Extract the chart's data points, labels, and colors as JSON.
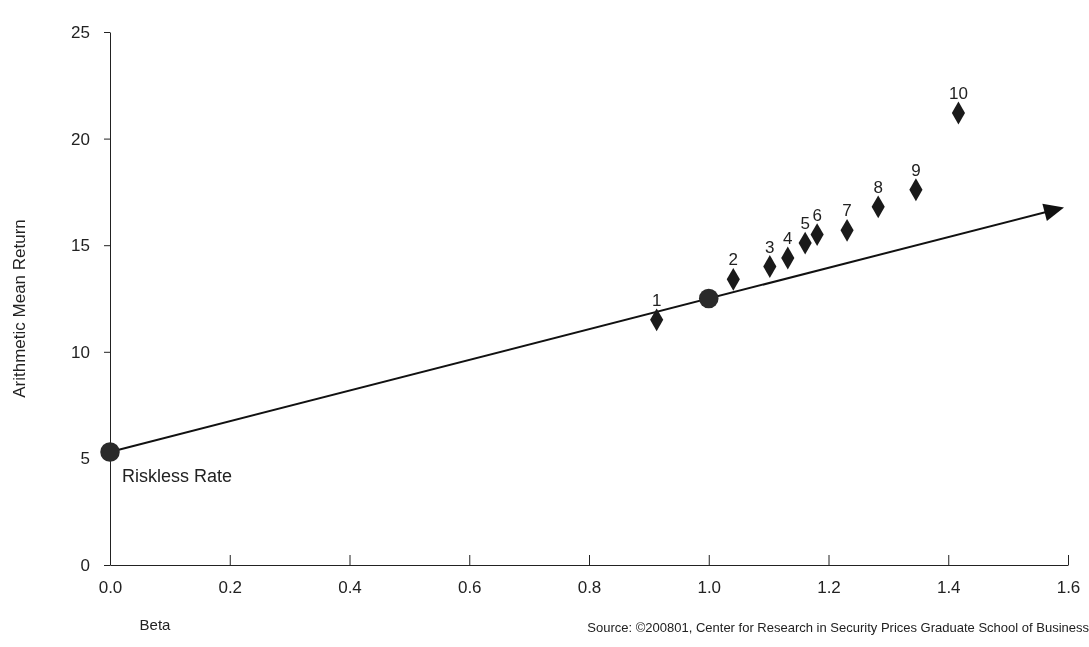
{
  "chart_data": {
    "type": "scatter",
    "xlabel": "Beta",
    "ylabel": "Arithmetic Mean Return",
    "xlim": [
      0,
      1.6
    ],
    "ylim": [
      0,
      25
    ],
    "xticks": [
      {
        "value": 0,
        "label": "0.0"
      },
      {
        "value": 0.2,
        "label": "0.2"
      },
      {
        "value": 0.4,
        "label": "0.4"
      },
      {
        "value": 0.6,
        "label": "0.6"
      },
      {
        "value": 0.8,
        "label": "0.8"
      },
      {
        "value": 1,
        "label": "1.0"
      },
      {
        "value": 1.2,
        "label": "1.2"
      },
      {
        "value": 1.4,
        "label": "1.4"
      },
      {
        "value": 1.6,
        "label": "1.6"
      }
    ],
    "yticks": [
      0,
      5,
      10,
      15,
      20,
      25
    ],
    "grid": false,
    "series": [
      {
        "marker": "diamond",
        "color": "#1a1a1a",
        "x": [
          0.913,
          1.041,
          1.102,
          1.132,
          1.161,
          1.181,
          1.231,
          1.283,
          1.346,
          1.417
        ],
        "values": [
          11.5,
          13.4,
          14.0,
          14.4,
          15.1,
          15.5,
          15.7,
          16.8,
          17.6,
          21.2
        ]
      },
      {
        "marker": "circle",
        "color": "#2a2a2a",
        "x": [
          0,
          1.0
        ],
        "values": [
          5.3,
          12.5
        ]
      }
    ],
    "annotations": [
      {
        "text": "1",
        "x": 0.913,
        "y": 11.5
      },
      {
        "text": "2",
        "x": 1.041,
        "y": 13.4
      },
      {
        "text": "3",
        "x": 1.102,
        "y": 14.0
      },
      {
        "text": "4",
        "x": 1.132,
        "y": 14.4
      },
      {
        "text": "5",
        "x": 1.161,
        "y": 15.1
      },
      {
        "text": "6",
        "x": 1.181,
        "y": 15.5
      },
      {
        "text": "7",
        "x": 1.231,
        "y": 15.7
      },
      {
        "text": "8",
        "x": 1.283,
        "y": 16.8
      },
      {
        "text": "9",
        "x": 1.346,
        "y": 17.6
      },
      {
        "text": "10",
        "x": 1.417,
        "y": 21.2
      },
      {
        "text": "Riskless Rate",
        "x": 0,
        "y": 5.3
      },
      "Source: ©200801, Center for Research in Security Prices Graduate School of Business"
    ]
  }
}
